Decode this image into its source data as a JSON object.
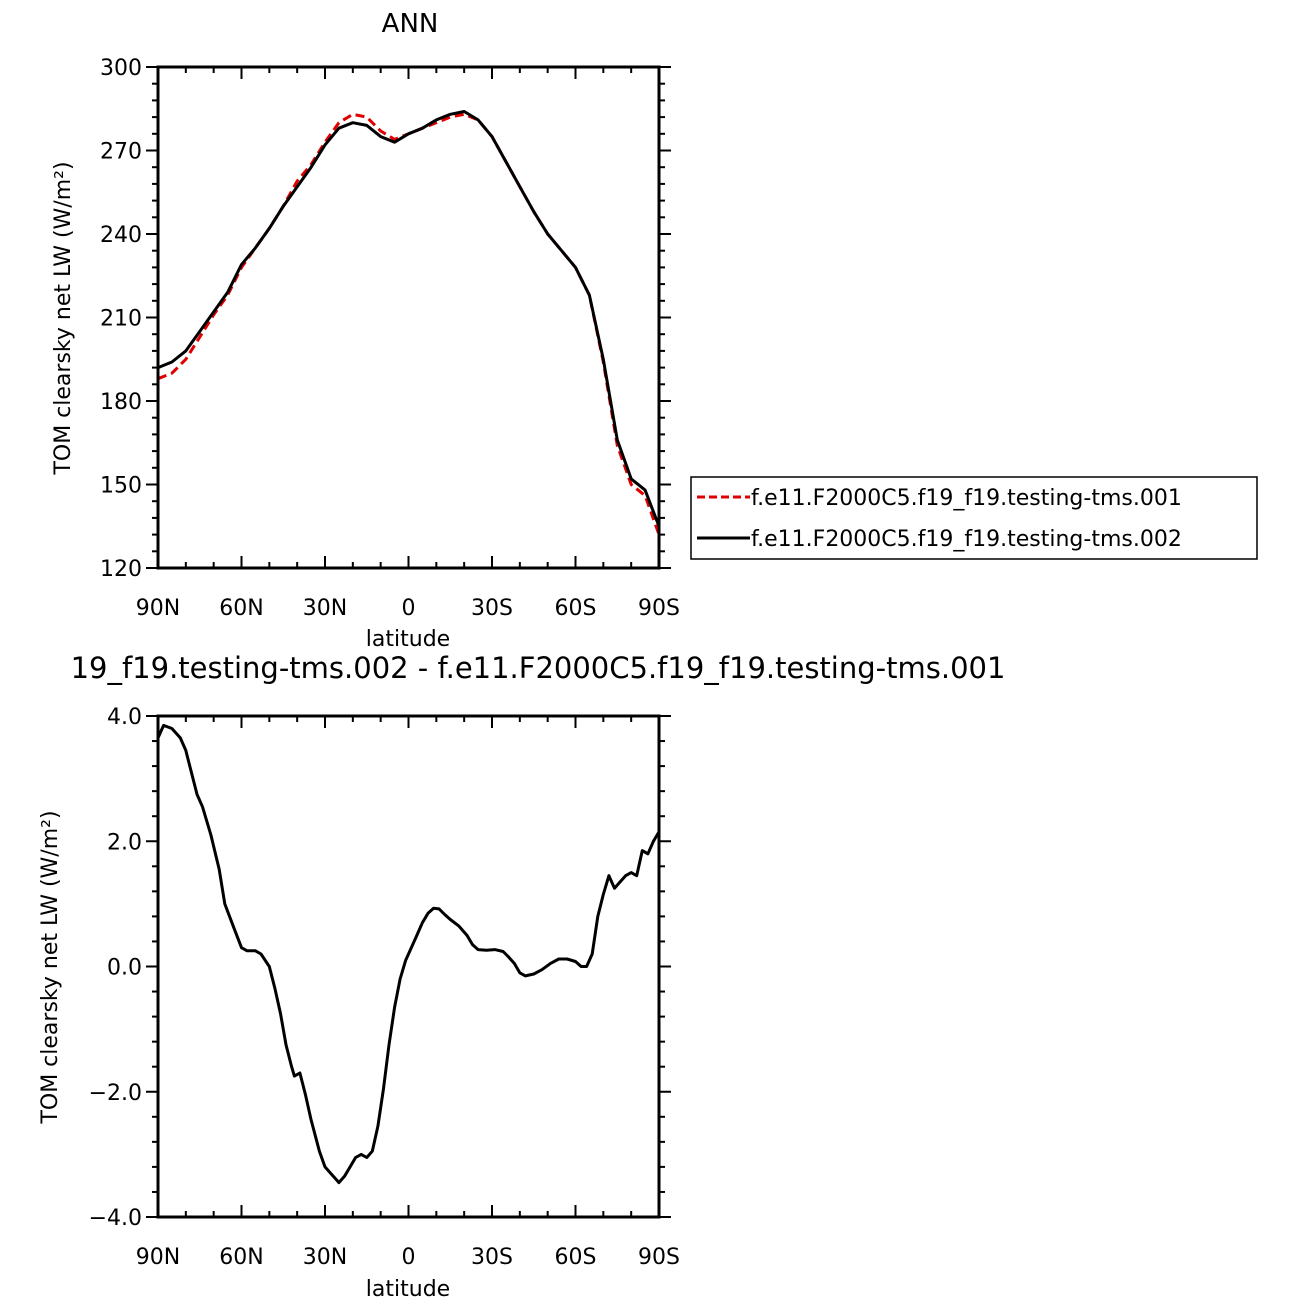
{
  "chart_data": [
    {
      "type": "line",
      "title": "ANN",
      "xlabel": "latitude",
      "ylabel": "TOM clearsky net LW (W/m²)",
      "xlim": [
        -90,
        90
      ],
      "ylim": [
        120,
        300
      ],
      "x_ticks": [
        -90,
        -60,
        -30,
        0,
        30,
        60,
        90
      ],
      "x_tick_labels": [
        "90N",
        "60N",
        "30N",
        "0",
        "30S",
        "60S",
        "90S"
      ],
      "y_ticks": [
        120,
        150,
        180,
        210,
        240,
        270,
        300
      ],
      "y_tick_labels": [
        "120",
        "150",
        "180",
        "210",
        "240",
        "270",
        "300"
      ],
      "legend": "right",
      "series": [
        {
          "name": "f.e11.F2000C5.f19_f19.testing-tms.001",
          "color": "#e00000",
          "dash": "dashed",
          "points": [
            [
              -90,
              188
            ],
            [
              -85,
              190
            ],
            [
              -80,
              195
            ],
            [
              -75,
              203
            ],
            [
              -70,
              211
            ],
            [
              -65,
              218
            ],
            [
              -60,
              228
            ],
            [
              -55,
              235
            ],
            [
              -50,
              242
            ],
            [
              -45,
              250
            ],
            [
              -40,
              259
            ],
            [
              -35,
              265
            ],
            [
              -30,
              273
            ],
            [
              -25,
              280
            ],
            [
              -20,
              283
            ],
            [
              -15,
              282
            ],
            [
              -10,
              277
            ],
            [
              -5,
              274
            ],
            [
              0,
              276
            ],
            [
              5,
              278
            ],
            [
              10,
              280
            ],
            [
              15,
              282
            ],
            [
              20,
              283
            ],
            [
              25,
              281
            ],
            [
              30,
              275
            ],
            [
              35,
              266
            ],
            [
              40,
              257
            ],
            [
              45,
              248
            ],
            [
              50,
              240
            ],
            [
              55,
              234
            ],
            [
              60,
              228
            ],
            [
              65,
              218
            ],
            [
              70,
              194
            ],
            [
              75,
              164
            ],
            [
              80,
              150
            ],
            [
              85,
              146
            ],
            [
              90,
              132
            ]
          ]
        },
        {
          "name": "f.e11.F2000C5.f19_f19.testing-tms.002",
          "color": "#000000",
          "dash": "solid",
          "points": [
            [
              -90,
              192
            ],
            [
              -85,
              194
            ],
            [
              -80,
              198
            ],
            [
              -75,
              205
            ],
            [
              -70,
              212
            ],
            [
              -65,
              219
            ],
            [
              -60,
              229
            ],
            [
              -55,
              235
            ],
            [
              -50,
              242
            ],
            [
              -45,
              250
            ],
            [
              -40,
              257
            ],
            [
              -35,
              264
            ],
            [
              -30,
              272
            ],
            [
              -25,
              278
            ],
            [
              -20,
              280
            ],
            [
              -15,
              279
            ],
            [
              -10,
              275
            ],
            [
              -5,
              273
            ],
            [
              0,
              276
            ],
            [
              5,
              278
            ],
            [
              10,
              281
            ],
            [
              15,
              283
            ],
            [
              20,
              284
            ],
            [
              25,
              281
            ],
            [
              30,
              275
            ],
            [
              35,
              266
            ],
            [
              40,
              257
            ],
            [
              45,
              248
            ],
            [
              50,
              240
            ],
            [
              55,
              234
            ],
            [
              60,
              228
            ],
            [
              65,
              218
            ],
            [
              70,
              195
            ],
            [
              75,
              166
            ],
            [
              80,
              152
            ],
            [
              85,
              148
            ],
            [
              90,
              135
            ]
          ]
        }
      ]
    },
    {
      "type": "line",
      "title": "19_f19.testing-tms.002 - f.e11.F2000C5.f19_f19.testing-tms.001",
      "xlabel": "latitude",
      "ylabel": "TOM clearsky net LW (W/m²)",
      "xlim": [
        -90,
        90
      ],
      "ylim": [
        -4,
        4
      ],
      "x_ticks": [
        -90,
        -60,
        -30,
        0,
        30,
        60,
        90
      ],
      "x_tick_labels": [
        "90N",
        "60N",
        "30N",
        "0",
        "30S",
        "60S",
        "90S"
      ],
      "y_ticks": [
        -4,
        -2,
        0,
        2,
        4
      ],
      "y_tick_labels": [
        "−4.0",
        "−2.0",
        "0.0",
        "2.0",
        "4.0"
      ],
      "series": [
        {
          "name": "",
          "color": "#000000",
          "dash": "solid",
          "points": [
            [
              -90,
              3.65
            ],
            [
              -88,
              3.85
            ],
            [
              -85,
              3.8
            ],
            [
              -82,
              3.65
            ],
            [
              -80,
              3.45
            ],
            [
              -78,
              3.1
            ],
            [
              -76,
              2.75
            ],
            [
              -74,
              2.55
            ],
            [
              -71,
              2.1
            ],
            [
              -68,
              1.55
            ],
            [
              -66,
              1.0
            ],
            [
              -63,
              0.65
            ],
            [
              -60,
              0.3
            ],
            [
              -58,
              0.25
            ],
            [
              -55,
              0.25
            ],
            [
              -53,
              0.2
            ],
            [
              -50,
              0.0
            ],
            [
              -48,
              -0.35
            ],
            [
              -46,
              -0.75
            ],
            [
              -44,
              -1.25
            ],
            [
              -42,
              -1.6
            ],
            [
              -41,
              -1.75
            ],
            [
              -39,
              -1.7
            ],
            [
              -37,
              -2.05
            ],
            [
              -35,
              -2.45
            ],
            [
              -32,
              -2.95
            ],
            [
              -30,
              -3.2
            ],
            [
              -28,
              -3.3
            ],
            [
              -26,
              -3.4
            ],
            [
              -25,
              -3.45
            ],
            [
              -23,
              -3.35
            ],
            [
              -21,
              -3.2
            ],
            [
              -19,
              -3.05
            ],
            [
              -17,
              -3.0
            ],
            [
              -15,
              -3.05
            ],
            [
              -13,
              -2.95
            ],
            [
              -11,
              -2.55
            ],
            [
              -9,
              -1.95
            ],
            [
              -7,
              -1.25
            ],
            [
              -5,
              -0.65
            ],
            [
              -3,
              -0.2
            ],
            [
              -1,
              0.1
            ],
            [
              1,
              0.3
            ],
            [
              3,
              0.5
            ],
            [
              5,
              0.7
            ],
            [
              7,
              0.85
            ],
            [
              9,
              0.93
            ],
            [
              11,
              0.92
            ],
            [
              13,
              0.83
            ],
            [
              15,
              0.75
            ],
            [
              18,
              0.65
            ],
            [
              21,
              0.5
            ],
            [
              23,
              0.35
            ],
            [
              25,
              0.27
            ],
            [
              28,
              0.26
            ],
            [
              31,
              0.27
            ],
            [
              34,
              0.24
            ],
            [
              36,
              0.15
            ],
            [
              38,
              0.05
            ],
            [
              40,
              -0.1
            ],
            [
              42,
              -0.15
            ],
            [
              45,
              -0.12
            ],
            [
              48,
              -0.05
            ],
            [
              51,
              0.05
            ],
            [
              54,
              0.12
            ],
            [
              57,
              0.12
            ],
            [
              60,
              0.08
            ],
            [
              62,
              0.0
            ],
            [
              64,
              0.0
            ],
            [
              66,
              0.2
            ],
            [
              68,
              0.8
            ],
            [
              70,
              1.15
            ],
            [
              72,
              1.45
            ],
            [
              74,
              1.25
            ],
            [
              76,
              1.35
            ],
            [
              78,
              1.45
            ],
            [
              80,
              1.5
            ],
            [
              82,
              1.45
            ],
            [
              84,
              1.85
            ],
            [
              86,
              1.8
            ],
            [
              88,
              2.0
            ],
            [
              90,
              2.15
            ]
          ]
        }
      ]
    }
  ]
}
